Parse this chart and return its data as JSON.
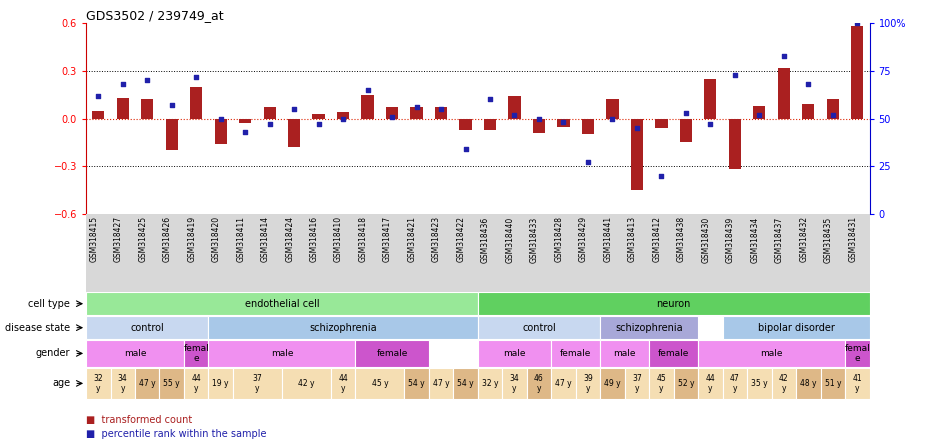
{
  "title": "GDS3502 / 239749_at",
  "samples": [
    "GSM318415",
    "GSM318427",
    "GSM318425",
    "GSM318426",
    "GSM318419",
    "GSM318420",
    "GSM318411",
    "GSM318414",
    "GSM318424",
    "GSM318416",
    "GSM318410",
    "GSM318418",
    "GSM318417",
    "GSM318421",
    "GSM318423",
    "GSM318422",
    "GSM318436",
    "GSM318440",
    "GSM318433",
    "GSM318428",
    "GSM318429",
    "GSM318441",
    "GSM318413",
    "GSM318412",
    "GSM318438",
    "GSM318430",
    "GSM318439",
    "GSM318434",
    "GSM318437",
    "GSM318432",
    "GSM318435",
    "GSM318431"
  ],
  "transformed_count": [
    0.05,
    0.13,
    0.12,
    -0.2,
    0.2,
    -0.16,
    -0.03,
    0.07,
    -0.18,
    0.03,
    0.04,
    0.15,
    0.07,
    0.07,
    0.07,
    -0.07,
    -0.07,
    0.14,
    -0.09,
    -0.05,
    -0.1,
    0.12,
    -0.45,
    -0.06,
    -0.15,
    0.25,
    -0.32,
    0.08,
    0.32,
    0.09,
    0.12,
    0.58
  ],
  "percentile_rank": [
    62,
    68,
    70,
    57,
    72,
    50,
    43,
    47,
    55,
    47,
    50,
    65,
    51,
    56,
    55,
    34,
    60,
    52,
    50,
    48,
    27,
    50,
    45,
    20,
    53,
    47,
    73,
    52,
    83,
    68,
    52,
    100
  ],
  "cell_type_groups": [
    {
      "label": "endothelial cell",
      "start": 0,
      "end": 16,
      "color": "#98E898"
    },
    {
      "label": "neuron",
      "start": 16,
      "end": 32,
      "color": "#60D060"
    }
  ],
  "disease_state_groups": [
    {
      "label": "control",
      "start": 0,
      "end": 5,
      "color": "#C8D8F0"
    },
    {
      "label": "schizophrenia",
      "start": 5,
      "end": 16,
      "color": "#A8C8E8"
    },
    {
      "label": "control",
      "start": 16,
      "end": 21,
      "color": "#C8D8F0"
    },
    {
      "label": "schizophrenia",
      "start": 21,
      "end": 25,
      "color": "#A8A8D8"
    },
    {
      "label": "bipolar disorder",
      "start": 26,
      "end": 32,
      "color": "#A8C8E8"
    }
  ],
  "gender_groups": [
    {
      "label": "male",
      "start": 0,
      "end": 4,
      "color": "#F090F0"
    },
    {
      "label": "female",
      "start": 4,
      "end": 5,
      "color": "#C060C0"
    },
    {
      "label": "male",
      "start": 5,
      "end": 11,
      "color": "#F090F0"
    },
    {
      "label": "female",
      "start": 11,
      "end": 14,
      "color": "#F090F0"
    },
    {
      "label": "male",
      "start": 16,
      "end": 19,
      "color": "#F090F0"
    },
    {
      "label": "female",
      "start": 19,
      "end": 21,
      "color": "#F090F0"
    },
    {
      "label": "male",
      "start": 21,
      "end": 23,
      "color": "#F090F0"
    },
    {
      "label": "female",
      "start": 23,
      "end": 25,
      "color": "#F090F0"
    },
    {
      "label": "male",
      "start": 25,
      "end": 31,
      "color": "#F090F0"
    },
    {
      "label": "female",
      "start": 31,
      "end": 32,
      "color": "#C060C0"
    }
  ],
  "age_data": [
    {
      "label": "32\ny",
      "start": 0,
      "end": 1,
      "color": "#F5DEB3"
    },
    {
      "label": "34\ny",
      "start": 1,
      "end": 2,
      "color": "#F5DEB3"
    },
    {
      "label": "47 y",
      "start": 2,
      "end": 3,
      "color": "#DEB887"
    },
    {
      "label": "55 y",
      "start": 3,
      "end": 4,
      "color": "#DEB887"
    },
    {
      "label": "44\ny",
      "start": 4,
      "end": 5,
      "color": "#F5DEB3"
    },
    {
      "label": "19 y",
      "start": 5,
      "end": 6,
      "color": "#F5DEB3"
    },
    {
      "label": "37\ny",
      "start": 6,
      "end": 8,
      "color": "#F5DEB3"
    },
    {
      "label": "42 y",
      "start": 8,
      "end": 10,
      "color": "#F5DEB3"
    },
    {
      "label": "44\ny",
      "start": 10,
      "end": 11,
      "color": "#F5DEB3"
    },
    {
      "label": "45 y",
      "start": 11,
      "end": 13,
      "color": "#F5DEB3"
    },
    {
      "label": "54 y",
      "start": 13,
      "end": 14,
      "color": "#DEB887"
    },
    {
      "label": "47 y",
      "start": 14,
      "end": 15,
      "color": "#F5DEB3"
    },
    {
      "label": "54 y",
      "start": 15,
      "end": 16,
      "color": "#DEB887"
    },
    {
      "label": "32 y",
      "start": 16,
      "end": 17,
      "color": "#F5DEB3"
    },
    {
      "label": "34\ny",
      "start": 17,
      "end": 18,
      "color": "#F5DEB3"
    },
    {
      "label": "46\ny",
      "start": 18,
      "end": 19,
      "color": "#DEB887"
    },
    {
      "label": "47 y",
      "start": 19,
      "end": 20,
      "color": "#F5DEB3"
    },
    {
      "label": "39\ny",
      "start": 20,
      "end": 21,
      "color": "#F5DEB3"
    },
    {
      "label": "49 y",
      "start": 21,
      "end": 22,
      "color": "#DEB887"
    },
    {
      "label": "37\ny",
      "start": 22,
      "end": 23,
      "color": "#F5DEB3"
    },
    {
      "label": "45\ny",
      "start": 23,
      "end": 24,
      "color": "#F5DEB3"
    },
    {
      "label": "52 y",
      "start": 24,
      "end": 25,
      "color": "#DEB887"
    },
    {
      "label": "44\ny",
      "start": 25,
      "end": 26,
      "color": "#F5DEB3"
    },
    {
      "label": "47\ny",
      "start": 26,
      "end": 27,
      "color": "#F5DEB3"
    },
    {
      "label": "35 y",
      "start": 27,
      "end": 28,
      "color": "#F5DEB3"
    },
    {
      "label": "42\ny",
      "start": 28,
      "end": 29,
      "color": "#F5DEB3"
    },
    {
      "label": "48 y",
      "start": 29,
      "end": 30,
      "color": "#DEB887"
    },
    {
      "label": "51 y",
      "start": 30,
      "end": 31,
      "color": "#DEB887"
    },
    {
      "label": "41\ny",
      "start": 31,
      "end": 32,
      "color": "#F5DEB3"
    }
  ],
  "bar_color": "#AA2020",
  "dot_color": "#2020AA",
  "xtick_bg": "#D8D8D8",
  "plot_bg": "#FFFFFF"
}
